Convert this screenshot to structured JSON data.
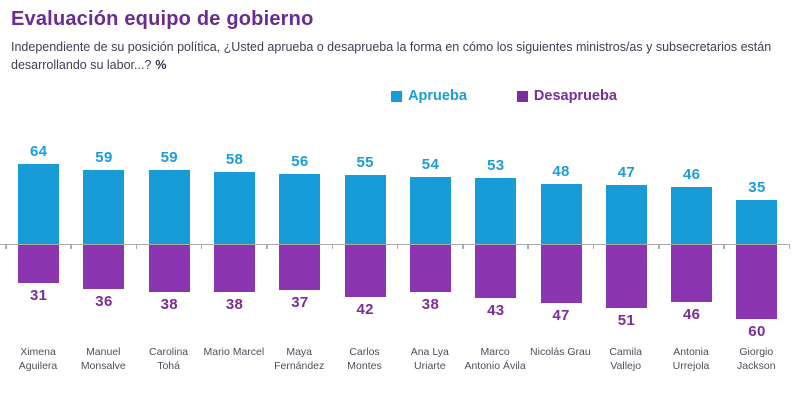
{
  "header": {
    "title": "Evaluación equipo de gobierno",
    "question": "Independiente de su posición política, ¿Usted aprueba o desaprueba la forma en cómo los siguientes ministros/as y subsecretarios están desarrollando su labor...?",
    "unit": "%"
  },
  "legend": {
    "aprueba": "Aprueba",
    "desaprueba": "Desaprueba"
  },
  "colors": {
    "title": "#6A2C91",
    "aprueba_bar": "#189CD8",
    "aprueba_text": "#1B9DD9",
    "desaprueba_bar": "#8B36B0",
    "desaprueba_text": "#7B2D9B",
    "axis": "#ABABAB",
    "body_text": "#3E4056",
    "category_text": "#4E4E5A"
  },
  "chart_data": {
    "type": "bar",
    "subtype": "diverging-vertical",
    "title": "Evaluación equipo de gobierno",
    "unit": "%",
    "legend_position": "top-center",
    "grid": false,
    "value_labels": true,
    "categories": [
      "Ximena Aguilera",
      "Manuel Monsalve",
      "Carolina Tohá",
      "Mario Marcel",
      "Maya Fernández",
      "Carlos Montes",
      "Ana Lya Uriarte",
      "Marco Antonio Ávila",
      "Nicolás Grau",
      "Camila Vallejo",
      "Antonia Urrejola",
      "Giorgio Jackson"
    ],
    "series": [
      {
        "name": "Aprueba",
        "direction": "up",
        "color": "#189CD8",
        "values": [
          64,
          59,
          59,
          58,
          56,
          55,
          54,
          53,
          48,
          47,
          46,
          35
        ]
      },
      {
        "name": "Desaprueba",
        "direction": "down",
        "color": "#8B36B0",
        "values": [
          31,
          36,
          38,
          38,
          37,
          42,
          38,
          43,
          47,
          51,
          46,
          60
        ]
      }
    ],
    "ylim": [
      -60,
      64
    ]
  }
}
